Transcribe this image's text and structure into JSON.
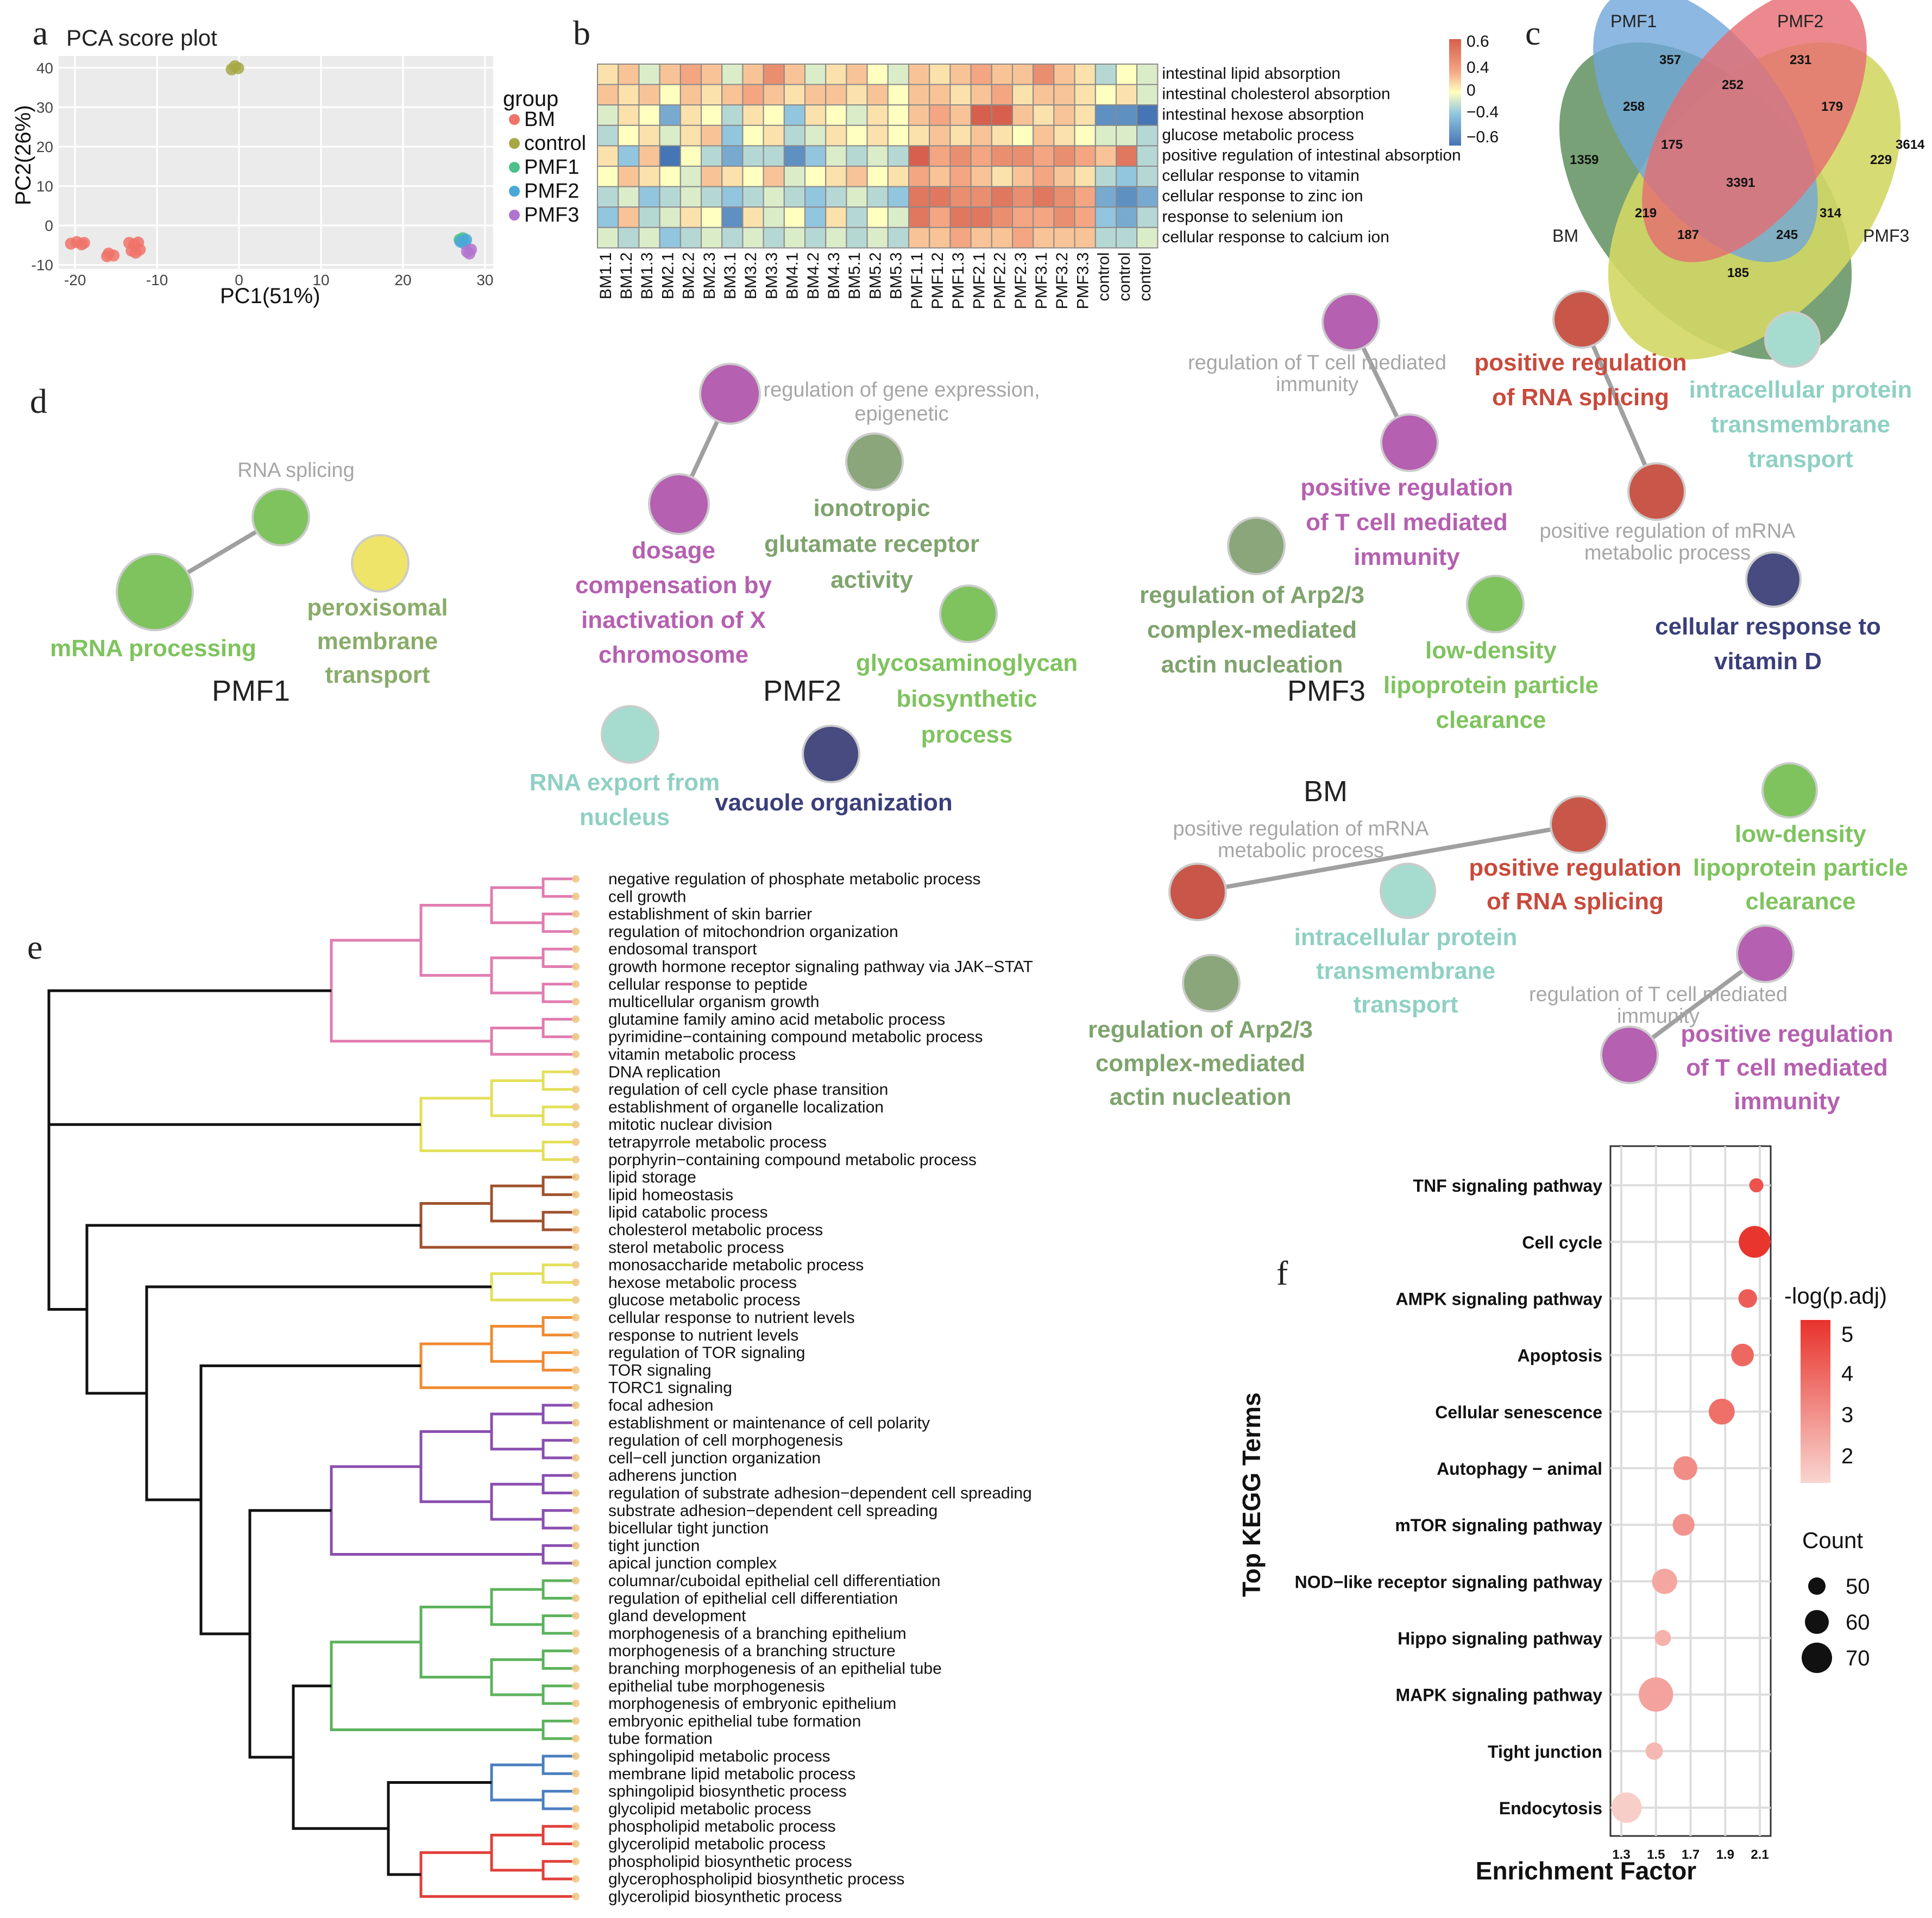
{
  "panel_letters": {
    "a": "a",
    "b": "b",
    "c": "c",
    "d": "d",
    "e": "e",
    "f": "f"
  },
  "pca": {
    "title": "PCA score plot",
    "xlabel": "PC1(51%)",
    "ylabel": "PC2(26%)",
    "xticks": [
      "-20",
      "-10",
      "0",
      "10",
      "20",
      "30"
    ],
    "yticks": [
      "40",
      "30",
      "20",
      "10",
      "0",
      "-10"
    ],
    "legend_title": "group",
    "legend": [
      {
        "name": "BM",
        "color": "#f0736a"
      },
      {
        "name": "control",
        "color": "#a6a845"
      },
      {
        "name": "PMF1",
        "color": "#4dbf8a"
      },
      {
        "name": "PMF2",
        "color": "#4aa8d8"
      },
      {
        "name": "PMF3",
        "color": "#b174cf"
      }
    ]
  },
  "chart_data": [
    {
      "panel": "a",
      "type": "scatter",
      "title": "PCA score plot",
      "xlabel": "PC1(51%)",
      "ylabel": "PC2(26%)",
      "xlim": [
        -22,
        31
      ],
      "ylim": [
        -11,
        43
      ],
      "series": [
        {
          "name": "BM",
          "points": [
            [
              -20.5,
              -4.6
            ],
            [
              -19.8,
              -4.2
            ],
            [
              -19.2,
              -4.8
            ],
            [
              -18.9,
              -4.4
            ],
            [
              -15.9,
              -7.1
            ],
            [
              -15.3,
              -7.6
            ],
            [
              -16.1,
              -7.8
            ],
            [
              -13.4,
              -4.4
            ],
            [
              -12.8,
              -4.8
            ],
            [
              -12.3,
              -4.3
            ],
            [
              -13.1,
              -6.4
            ],
            [
              -12.6,
              -6.9
            ],
            [
              -12.1,
              -6.1
            ]
          ]
        },
        {
          "name": "control",
          "points": [
            [
              -0.9,
              39.6
            ],
            [
              -0.5,
              40.4
            ],
            [
              -0.1,
              39.9
            ]
          ]
        },
        {
          "name": "PMF1",
          "points": [
            [
              26.9,
              -3.6
            ],
            [
              27.3,
              -3.2
            ]
          ]
        },
        {
          "name": "PMF2",
          "points": [
            [
              27.0,
              -4.1
            ],
            [
              27.5,
              -4.6
            ],
            [
              27.7,
              -3.6
            ]
          ]
        },
        {
          "name": "PMF3",
          "points": [
            [
              27.8,
              -6.6
            ],
            [
              28.3,
              -6.1
            ],
            [
              28.1,
              -7.1
            ]
          ]
        }
      ]
    },
    {
      "panel": "b",
      "type": "heatmap",
      "colorbar": {
        "range": [
          -0.6,
          0.6
        ],
        "ticks": [
          "0.6",
          "0.4",
          "0",
          "−0.4",
          "−0.6"
        ]
      },
      "columns": [
        "BM1.1",
        "BM1.2",
        "BM1.3",
        "BM2.1",
        "BM2.2",
        "BM2.3",
        "BM3.1",
        "BM3.2",
        "BM3.3",
        "BM4.1",
        "BM4.2",
        "BM4.3",
        "BM5.1",
        "BM5.2",
        "BM5.3",
        "PMF1.1",
        "PMF1.2",
        "PMF1.3",
        "PMF2.1",
        "PMF2.2",
        "PMF2.3",
        "PMF3.1",
        "PMF3.2",
        "PMF3.3",
        "control",
        "control",
        "control"
      ],
      "rows": [
        "intestinal lipid absorption",
        "intestinal cholesterol absorption",
        "intestinal hexose absorption",
        "glucose metabolic process",
        "positive regulation of intestinal absorption",
        "cellular response to vitamin",
        "cellular response to zinc ion",
        "response to selenium ion",
        "cellular response to calcium ion"
      ],
      "values": [
        [
          0.1,
          0.2,
          -0.1,
          0.2,
          0.3,
          0.2,
          -0.1,
          0.2,
          0.4,
          0.2,
          -0.1,
          0.1,
          0.2,
          0.0,
          -0.1,
          0.2,
          0.1,
          0.2,
          0.3,
          0.2,
          0.2,
          0.4,
          0.2,
          0.1,
          -0.2,
          0.0,
          -0.1
        ],
        [
          0.2,
          0.1,
          0.2,
          0.0,
          0.2,
          0.1,
          0.2,
          0.3,
          0.2,
          0.1,
          0.2,
          0.2,
          0.1,
          0.2,
          0.0,
          0.2,
          0.2,
          0.1,
          0.2,
          0.3,
          0.1,
          0.2,
          0.2,
          0.1,
          0.0,
          0.1,
          -0.1
        ],
        [
          -0.1,
          0.1,
          0.0,
          -0.4,
          0.1,
          0.0,
          -0.2,
          0.1,
          0.0,
          -0.3,
          0.1,
          0.0,
          -0.1,
          0.1,
          0.0,
          0.2,
          0.3,
          0.2,
          0.6,
          0.6,
          0.2,
          0.1,
          0.2,
          0.1,
          -0.5,
          -0.5,
          -0.6
        ],
        [
          -0.2,
          0.0,
          0.1,
          -0.1,
          0.1,
          0.2,
          -0.3,
          0.0,
          0.1,
          -0.2,
          -0.1,
          0.1,
          0.0,
          0.1,
          0.0,
          0.1,
          0.2,
          0.1,
          0.2,
          0.1,
          0.0,
          0.2,
          0.1,
          0.0,
          -0.1,
          -0.1,
          -0.2
        ],
        [
          0.1,
          -0.3,
          0.2,
          -0.6,
          0.0,
          -0.2,
          -0.4,
          -0.2,
          -0.2,
          -0.5,
          -0.3,
          -0.1,
          -0.2,
          -0.1,
          -0.2,
          0.6,
          0.3,
          0.4,
          0.3,
          0.4,
          0.4,
          0.3,
          0.4,
          0.3,
          0.2,
          0.5,
          -0.2
        ],
        [
          0.0,
          0.2,
          0.1,
          0.0,
          -0.1,
          0.2,
          0.1,
          0.0,
          0.2,
          -0.1,
          0.0,
          0.1,
          0.2,
          0.0,
          0.1,
          0.3,
          0.2,
          0.3,
          0.2,
          0.1,
          0.2,
          0.3,
          0.2,
          0.1,
          -0.2,
          -0.3,
          -0.2
        ],
        [
          -0.2,
          -0.1,
          -0.3,
          -0.2,
          -0.1,
          -0.2,
          -0.3,
          -0.2,
          -0.1,
          -0.2,
          -0.3,
          -0.2,
          -0.1,
          -0.2,
          -0.3,
          0.5,
          0.5,
          0.4,
          0.4,
          0.5,
          0.4,
          0.5,
          0.4,
          0.3,
          -0.4,
          -0.5,
          -0.4
        ],
        [
          -0.3,
          0.2,
          -0.2,
          -0.1,
          0.1,
          0.0,
          -0.5,
          0.1,
          -0.1,
          0.0,
          -0.3,
          0.1,
          -0.2,
          0.0,
          -0.1,
          0.5,
          0.3,
          0.5,
          0.5,
          0.4,
          0.3,
          0.3,
          0.4,
          0.3,
          -0.3,
          -0.4,
          -0.2
        ],
        [
          -0.1,
          -0.2,
          -0.1,
          -0.3,
          -0.2,
          -0.1,
          -0.2,
          -0.1,
          -0.2,
          -0.1,
          -0.2,
          -0.1,
          -0.2,
          -0.1,
          -0.2,
          0.2,
          0.2,
          0.3,
          0.2,
          0.2,
          0.3,
          0.2,
          0.2,
          0.2,
          -0.2,
          -0.2,
          -0.1
        ]
      ]
    },
    {
      "panel": "c",
      "type": "table",
      "title": "Venn diagram",
      "sets": [
        "PMF1",
        "PMF2",
        "PMF3",
        "BM"
      ],
      "regions": [
        {
          "label": "357"
        },
        {
          "label": "231"
        },
        {
          "label": "252"
        },
        {
          "label": "258"
        },
        {
          "label": "179"
        },
        {
          "label": "1359"
        },
        {
          "label": "175"
        },
        {
          "label": "3614"
        },
        {
          "label": "229"
        },
        {
          "label": "3391"
        },
        {
          "label": "219"
        },
        {
          "label": "314"
        },
        {
          "label": "187"
        },
        {
          "label": "245"
        },
        {
          "label": "185"
        }
      ]
    },
    {
      "panel": "f",
      "type": "scatter",
      "xlabel": "Enrichment Factor",
      "ylabel": "Top KEGG Terms",
      "xlim": [
        1.3,
        2.1
      ],
      "xticks": [
        "1.3",
        "1.5",
        "1.7",
        "1.9",
        "2.1"
      ],
      "legend_color_title": "-log(p.adj)",
      "legend_color_ticks": [
        "5",
        "4",
        "3",
        "2"
      ],
      "legend_size_title": "Count",
      "legend_size_ticks": [
        "50",
        "60",
        "70"
      ],
      "points": [
        {
          "term": "TNF signaling pathway",
          "x": 2.08,
          "count": 45,
          "neglogp": 4.6
        },
        {
          "term": "Cell cycle",
          "x": 2.07,
          "count": 72,
          "neglogp": 5.4
        },
        {
          "term": "AMPK signaling pathway",
          "x": 2.03,
          "count": 52,
          "neglogp": 4.3
        },
        {
          "term": "Apoptosis",
          "x": 2.0,
          "count": 58,
          "neglogp": 4.0
        },
        {
          "term": "Cellular senescence",
          "x": 1.88,
          "count": 63,
          "neglogp": 3.8
        },
        {
          "term": "Autophagy − animal",
          "x": 1.67,
          "count": 60,
          "neglogp": 3.0
        },
        {
          "term": "mTOR signaling pathway",
          "x": 1.66,
          "count": 57,
          "neglogp": 2.8
        },
        {
          "term": "NOD−like receptor signaling pathway",
          "x": 1.55,
          "count": 62,
          "neglogp": 2.3
        },
        {
          "term": "Hippo signaling pathway",
          "x": 1.54,
          "count": 48,
          "neglogp": 2.0
        },
        {
          "term": "MAPK signaling pathway",
          "x": 1.5,
          "count": 76,
          "neglogp": 2.4
        },
        {
          "term": "Tight junction",
          "x": 1.49,
          "count": 50,
          "neglogp": 1.8
        },
        {
          "term": "Endocytosis",
          "x": 1.33,
          "count": 70,
          "neglogp": 1.2
        }
      ]
    }
  ],
  "venn": {
    "set_labels": {
      "pmf1": "PMF1",
      "pmf2": "PMF2",
      "pmf3": "PMF3",
      "bm": "BM"
    },
    "colors": {
      "pmf1": "#4a8fcf",
      "pmf2": "#e0444b",
      "pmf3": "#c7cc3a",
      "bm": "#3f7a3f"
    }
  },
  "network": {
    "group_labels": {
      "pmf1": "PMF1",
      "pmf2": "PMF2",
      "pmf3": "PMF3",
      "bm": "BM"
    },
    "pmf1": [
      {
        "text": "RNA splicing",
        "color": "#a6a6a6",
        "node": "#7fc35f"
      },
      {
        "text": "mRNA processing",
        "color": "#7fc35f",
        "node": "#7fc35f"
      },
      {
        "text": "peroxisomal membrane transport",
        "color": "#8aac6a",
        "node": "#efe46a"
      }
    ],
    "pmf2": [
      {
        "text": "regulation of gene expression, epigenetic",
        "color": "#a6a6a6",
        "node": "#b560b0"
      },
      {
        "text": "dosage compensation by inactivation of X chromosome",
        "color": "#b560b0",
        "node": "#b560b0"
      },
      {
        "text": "ionotropic glutamate receptor activity",
        "color": "#7fa36e",
        "node": "#8aa67a"
      },
      {
        "text": "glycosaminoglycan biosynthetic process",
        "color": "#7fc35f",
        "node": "#7fc35f"
      },
      {
        "text": "RNA export from nucleus",
        "color": "#8fd0c4",
        "node": "#a6dccf"
      },
      {
        "text": "vacuole organization",
        "color": "#3a3f7a",
        "node": "#474b7f"
      }
    ],
    "pmf3": [
      {
        "text": "regulation of T cell mediated immunity",
        "color": "#a6a6a6",
        "node": "#b560b0"
      },
      {
        "text": "positive regulation of T cell mediated immunity",
        "color": "#b560b0",
        "node": "#b560b0"
      },
      {
        "text": "positive regulation of RNA splicing",
        "color": "#c84a3c",
        "node": "#c8574a"
      },
      {
        "text": "positive regulation of mRNA metabolic process",
        "color": "#a6a6a6",
        "node": "#c8574a"
      },
      {
        "text": "intracellular protein transmembrane transport",
        "color": "#8fd0c4",
        "node": "#a6dccf"
      },
      {
        "text": "regulation of Arp2/3 complex-mediated actin nucleation",
        "color": "#7fa36e",
        "node": "#8aa67a"
      },
      {
        "text": "low-density lipoprotein particle clearance",
        "color": "#7fc35f",
        "node": "#7fc35f"
      },
      {
        "text": "cellular response to vitamin D",
        "color": "#3a3f7a",
        "node": "#474b7f"
      }
    ],
    "bm": [
      {
        "text": "positive regulation of mRNA metabolic process",
        "color": "#a6a6a6",
        "node": "#c8574a"
      },
      {
        "text": "positive regulation of RNA splicing",
        "color": "#c84a3c",
        "node": "#c8574a"
      },
      {
        "text": "low-density lipoprotein particle clearance",
        "color": "#7fc35f",
        "node": "#7fc35f"
      },
      {
        "text": "intracellular protein transmembrane transport",
        "color": "#8fd0c4",
        "node": "#a6dccf"
      },
      {
        "text": "regulation of T cell mediated immunity",
        "color": "#a6a6a6",
        "node": "#b560b0"
      },
      {
        "text": "positive regulation of T cell mediated immunity",
        "color": "#b560b0",
        "node": "#b560b0"
      },
      {
        "text": "regulation of Arp2/3 complex-mediated actin nucleation",
        "color": "#7fa36e",
        "node": "#8aa67a"
      }
    ]
  },
  "dendrogram": {
    "clusters": [
      {
        "color": "#e07cb0",
        "terms": [
          "negative regulation of phosphate metabolic process",
          "cell growth",
          "establishment of skin barrier",
          "regulation of mitochondrion organization",
          "endosomal transport",
          "growth hormone receptor signaling pathway via JAK−STAT",
          "cellular response to peptide",
          "multicellular organism growth",
          "glutamine family amino acid metabolic process",
          "pyrimidine−containing compound metabolic process",
          "vitamin metabolic process"
        ]
      },
      {
        "color": "#e3e05a",
        "terms": [
          "DNA replication",
          "regulation of cell cycle phase transition",
          "establishment of organelle localization",
          "mitotic nuclear division",
          "tetrapyrrole metabolic process",
          "porphyrin−containing compound metabolic process"
        ]
      },
      {
        "color": "#a0522d",
        "terms": [
          "lipid storage",
          "lipid homeostasis",
          "lipid catabolic process",
          "cholesterol metabolic process",
          "sterol metabolic process"
        ]
      },
      {
        "color": "#e3e05a",
        "terms": [
          "monosaccharide metabolic process",
          "hexose metabolic process",
          "glucose metabolic process"
        ]
      },
      {
        "color": "#f08a30",
        "terms": [
          "cellular response to nutrient levels",
          "response to nutrient levels",
          "regulation of TOR signaling",
          "TOR signaling",
          "TORC1 signaling"
        ]
      },
      {
        "color": "#8a4fb0",
        "terms": [
          "focal adhesion",
          "establishment or maintenance of cell polarity",
          "regulation of cell morphogenesis",
          "cell−cell junction organization",
          "adherens junction",
          "regulation of substrate adhesion−dependent cell spreading",
          "substrate adhesion−dependent cell spreading",
          "bicellular tight junction",
          "tight junction",
          "apical junction complex"
        ]
      },
      {
        "color": "#5cb25c",
        "terms": [
          "columnar/cuboidal epithelial cell differentiation",
          "regulation of epithelial cell differentiation",
          "gland development",
          "morphogenesis of a branching epithelium",
          "morphogenesis of a branching structure",
          "branching morphogenesis of an epithelial tube",
          "epithelial tube morphogenesis",
          "morphogenesis of embryonic epithelium",
          "embryonic epithelial tube formation",
          "tube formation"
        ]
      },
      {
        "color": "#4a7fbf",
        "terms": [
          "sphingolipid metabolic process",
          "membrane lipid metabolic process",
          "sphingolipid biosynthetic process",
          "glycolipid metabolic process"
        ]
      },
      {
        "color": "#e0403a",
        "terms": [
          "phospholipid metabolic process",
          "glycerolipid metabolic process",
          "phospholipid biosynthetic process",
          "glycerophospholipid biosynthetic process",
          "glycerolipid biosynthetic process"
        ]
      }
    ]
  }
}
